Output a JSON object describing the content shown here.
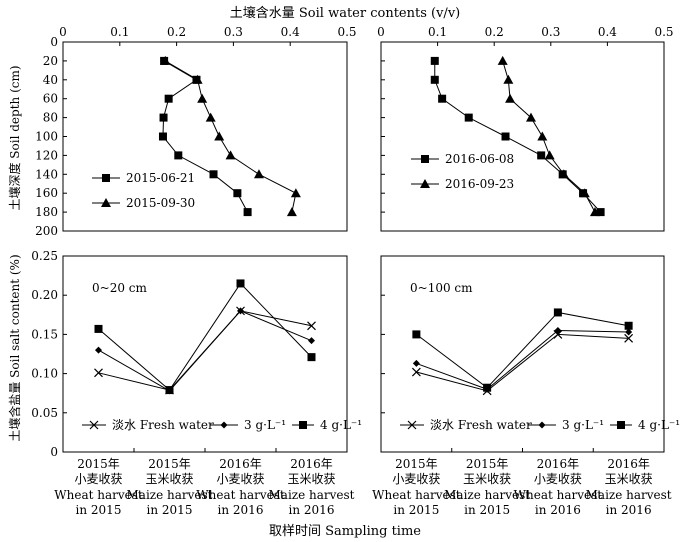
{
  "figure": {
    "top_axis_title": "土壤含水量 Soil water contents (v/v)",
    "bottom_axis_title": "取样时间 Sampling time",
    "water_ylabel": "土壤深度 Soil depth (cm)",
    "salt_ylabel": "土壤含盐量 Soil salt content (%)"
  },
  "chart_data": [
    {
      "type": "line",
      "panel": "top-left",
      "xlabel": "土壤含水量 Soil water contents (v/v)",
      "ylabel": "土壤深度 Soil depth (cm)",
      "xlim": [
        0,
        0.5
      ],
      "ylim": [
        0,
        200
      ],
      "y_inverted": true,
      "xticks": [
        "0",
        "0.1",
        "0.2",
        "0.3",
        "0.4",
        "0.5"
      ],
      "yticks": [
        "0",
        "20",
        "40",
        "60",
        "80",
        "100",
        "120",
        "140",
        "160",
        "180",
        "200"
      ],
      "legend_position": "bottom-left",
      "series": [
        {
          "name": "2015-06-21",
          "marker": "square",
          "x": [
            0.178,
            0.235,
            0.186,
            0.177,
            0.176,
            0.203,
            0.265,
            0.307,
            0.325
          ],
          "y": [
            20,
            40,
            60,
            80,
            100,
            120,
            140,
            160,
            180
          ]
        },
        {
          "name": "2015-09-30",
          "marker": "triangle",
          "x": [
            0.18,
            0.237,
            0.245,
            0.26,
            0.275,
            0.295,
            0.345,
            0.41,
            0.403
          ],
          "y": [
            20,
            40,
            60,
            80,
            100,
            120,
            140,
            160,
            180
          ]
        }
      ]
    },
    {
      "type": "line",
      "panel": "top-right",
      "xlabel": "土壤含水量 Soil water contents (v/v)",
      "xlim": [
        0,
        0.5
      ],
      "ylim": [
        0,
        200
      ],
      "y_inverted": true,
      "xticks": [
        "0",
        "0.1",
        "0.2",
        "0.3",
        "0.4",
        "0.5"
      ],
      "legend_position": "middle-left",
      "series": [
        {
          "name": "2016-06-08",
          "marker": "square",
          "x": [
            0.095,
            0.095,
            0.108,
            0.155,
            0.22,
            0.283,
            0.321,
            0.357,
            0.388
          ],
          "y": [
            20,
            40,
            60,
            80,
            100,
            120,
            140,
            160,
            180
          ]
        },
        {
          "name": "2016-09-23",
          "marker": "triangle",
          "x": [
            0.215,
            0.225,
            0.228,
            0.265,
            0.285,
            0.298,
            0.323,
            0.36,
            0.378
          ],
          "y": [
            20,
            40,
            60,
            80,
            100,
            120,
            140,
            160,
            180
          ]
        }
      ]
    },
    {
      "type": "line",
      "panel": "bottom-left",
      "annotation": "0~20 cm",
      "ylabel": "土壤含盐量 Soil salt content (%)",
      "xlabel": "取样时间 Sampling time",
      "ylim": [
        0,
        0.25
      ],
      "yticks": [
        "0",
        "0.05",
        "0.10",
        "0.15",
        "0.20",
        "0.25"
      ],
      "categories": [
        {
          "cn": "2015年小麦收获",
          "en1": "Wheat harvest",
          "en2": "in 2015"
        },
        {
          "cn": "2015年玉米收获",
          "en1": "Maize harvest",
          "en2": "in 2015"
        },
        {
          "cn": "2016年小麦收获",
          "en1": "Wheat harvest",
          "en2": "in 2016"
        },
        {
          "cn": "2016年玉米收获",
          "en1": "Maize harvest",
          "en2": "in 2016"
        }
      ],
      "legend_position": "bottom",
      "series": [
        {
          "name": "淡水 Fresh water",
          "marker": "x",
          "values": [
            0.101,
            0.079,
            0.18,
            0.161
          ]
        },
        {
          "name": "3 g·L⁻¹",
          "marker": "diamond",
          "values": [
            0.13,
            0.078,
            0.18,
            0.142
          ]
        },
        {
          "name": "4 g·L⁻¹",
          "marker": "square",
          "values": [
            0.157,
            0.079,
            0.215,
            0.121
          ]
        }
      ]
    },
    {
      "type": "line",
      "panel": "bottom-right",
      "annotation": "0~100 cm",
      "xlabel": "取样时间 Sampling time",
      "ylim": [
        0,
        0.25
      ],
      "categories": [
        {
          "cn": "2015年小麦收获",
          "en1": "Wheat harvest",
          "en2": "in 2015"
        },
        {
          "cn": "2015年玉米收获",
          "en1": "Maize harvest",
          "en2": "in 2015"
        },
        {
          "cn": "2016年小麦收获",
          "en1": "Wheat harvest",
          "en2": "in 2016"
        },
        {
          "cn": "2016年玉米收获",
          "en1": "Maize harvest",
          "en2": "in 2016"
        }
      ],
      "legend_position": "bottom",
      "series": [
        {
          "name": "淡水 Fresh water",
          "marker": "x",
          "values": [
            0.102,
            0.078,
            0.15,
            0.145
          ]
        },
        {
          "name": "3 g·L⁻¹",
          "marker": "diamond",
          "values": [
            0.113,
            0.08,
            0.155,
            0.153
          ]
        },
        {
          "name": "4 g·L⁻¹",
          "marker": "square",
          "values": [
            0.15,
            0.082,
            0.178,
            0.161
          ]
        }
      ]
    }
  ]
}
